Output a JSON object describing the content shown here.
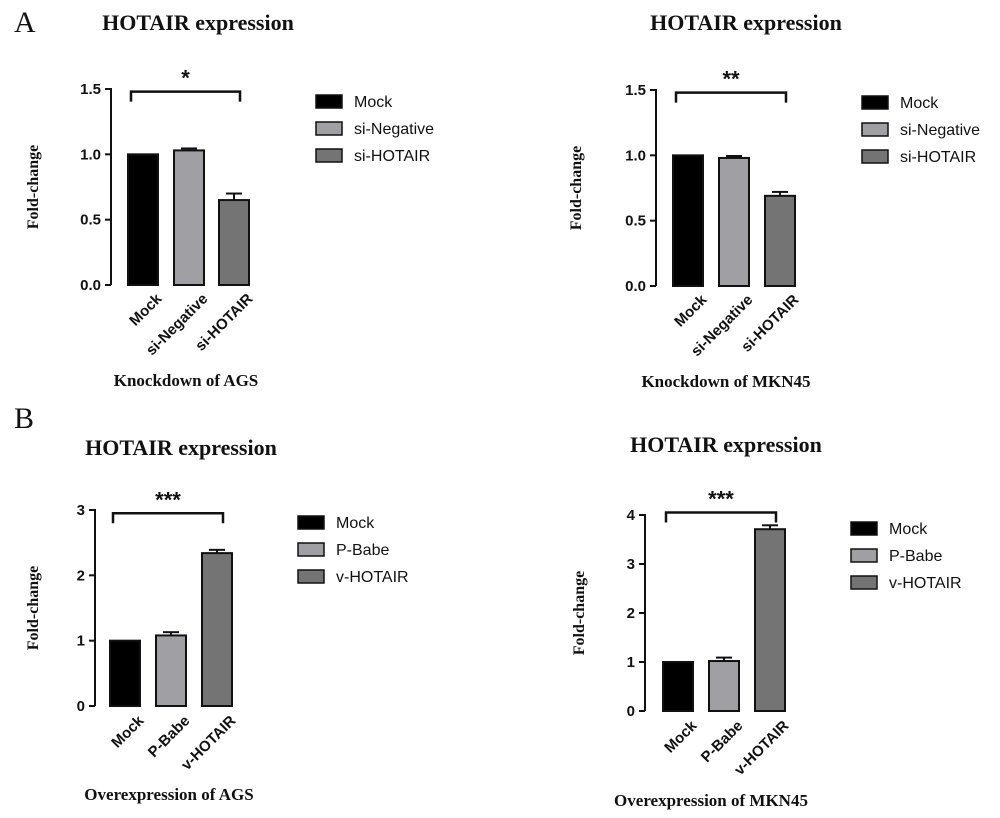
{
  "panels": [
    "A",
    "B"
  ],
  "chart_data": [
    {
      "type": "bar",
      "title": "HOTAIR expression",
      "xlabel": "Knockdown of AGS",
      "ylabel": "Fold-change",
      "ylim": [
        0,
        1.5
      ],
      "yticks": [
        "0.0",
        "0.5",
        "1.0",
        "1.5"
      ],
      "categories": [
        "Mock",
        "si-Negative",
        "si-HOTAIR"
      ],
      "values": [
        1.0,
        1.03,
        0.65
      ],
      "errors": [
        0.0,
        0.015,
        0.05
      ],
      "colors": [
        "#000000",
        "#a0a0a4",
        "#747474"
      ],
      "legend": [
        "Mock",
        "si-Negative",
        "si-HOTAIR"
      ],
      "legend_position": "right",
      "significance": {
        "from": 0,
        "to": 2,
        "label": "*",
        "level": 1.48
      }
    },
    {
      "type": "bar",
      "title": "HOTAIR expression",
      "xlabel": "Knockdown of MKN45",
      "ylabel": "Fold-change",
      "ylim": [
        0,
        1.5
      ],
      "yticks": [
        "0.0",
        "0.5",
        "1.0",
        "1.5"
      ],
      "categories": [
        "Mock",
        "si-Negative",
        "si-HOTAIR"
      ],
      "values": [
        1.0,
        0.98,
        0.69
      ],
      "errors": [
        0.0,
        0.015,
        0.03
      ],
      "colors": [
        "#000000",
        "#a0a0a4",
        "#747474"
      ],
      "legend": [
        "Mock",
        "si-Negative",
        "si-HOTAIR"
      ],
      "legend_position": "right",
      "significance": {
        "from": 0,
        "to": 2,
        "label": "**",
        "level": 1.48
      }
    },
    {
      "type": "bar",
      "title": "HOTAIR expression",
      "xlabel": "Overexpression of AGS",
      "ylabel": "Fold-change",
      "ylim": [
        0,
        3
      ],
      "yticks": [
        "0",
        "1",
        "2",
        "3"
      ],
      "categories": [
        "Mock",
        "P-Babe",
        "v-HOTAIR"
      ],
      "values": [
        1.0,
        1.08,
        2.34
      ],
      "errors": [
        0.0,
        0.05,
        0.05
      ],
      "colors": [
        "#000000",
        "#a0a0a4",
        "#747474"
      ],
      "legend": [
        "Mock",
        "P-Babe",
        "v-HOTAIR"
      ],
      "legend_position": "right",
      "significance": {
        "from": 0,
        "to": 2,
        "label": "***",
        "level": 2.95
      }
    },
    {
      "type": "bar",
      "title": "HOTAIR expression",
      "xlabel": "Overexpression of MKN45",
      "ylabel": "Fold-change",
      "ylim": [
        0,
        4
      ],
      "yticks": [
        "0",
        "1",
        "2",
        "3",
        "4"
      ],
      "categories": [
        "Mock",
        "P-Babe",
        "v-HOTAIR"
      ],
      "values": [
        1.0,
        1.02,
        3.71
      ],
      "errors": [
        0.0,
        0.07,
        0.08
      ],
      "colors": [
        "#000000",
        "#a0a0a4",
        "#747474"
      ],
      "legend": [
        "Mock",
        "P-Babe",
        "v-HOTAIR"
      ],
      "legend_position": "right",
      "significance": {
        "from": 0,
        "to": 2,
        "label": "***",
        "level": 4.05
      }
    }
  ]
}
